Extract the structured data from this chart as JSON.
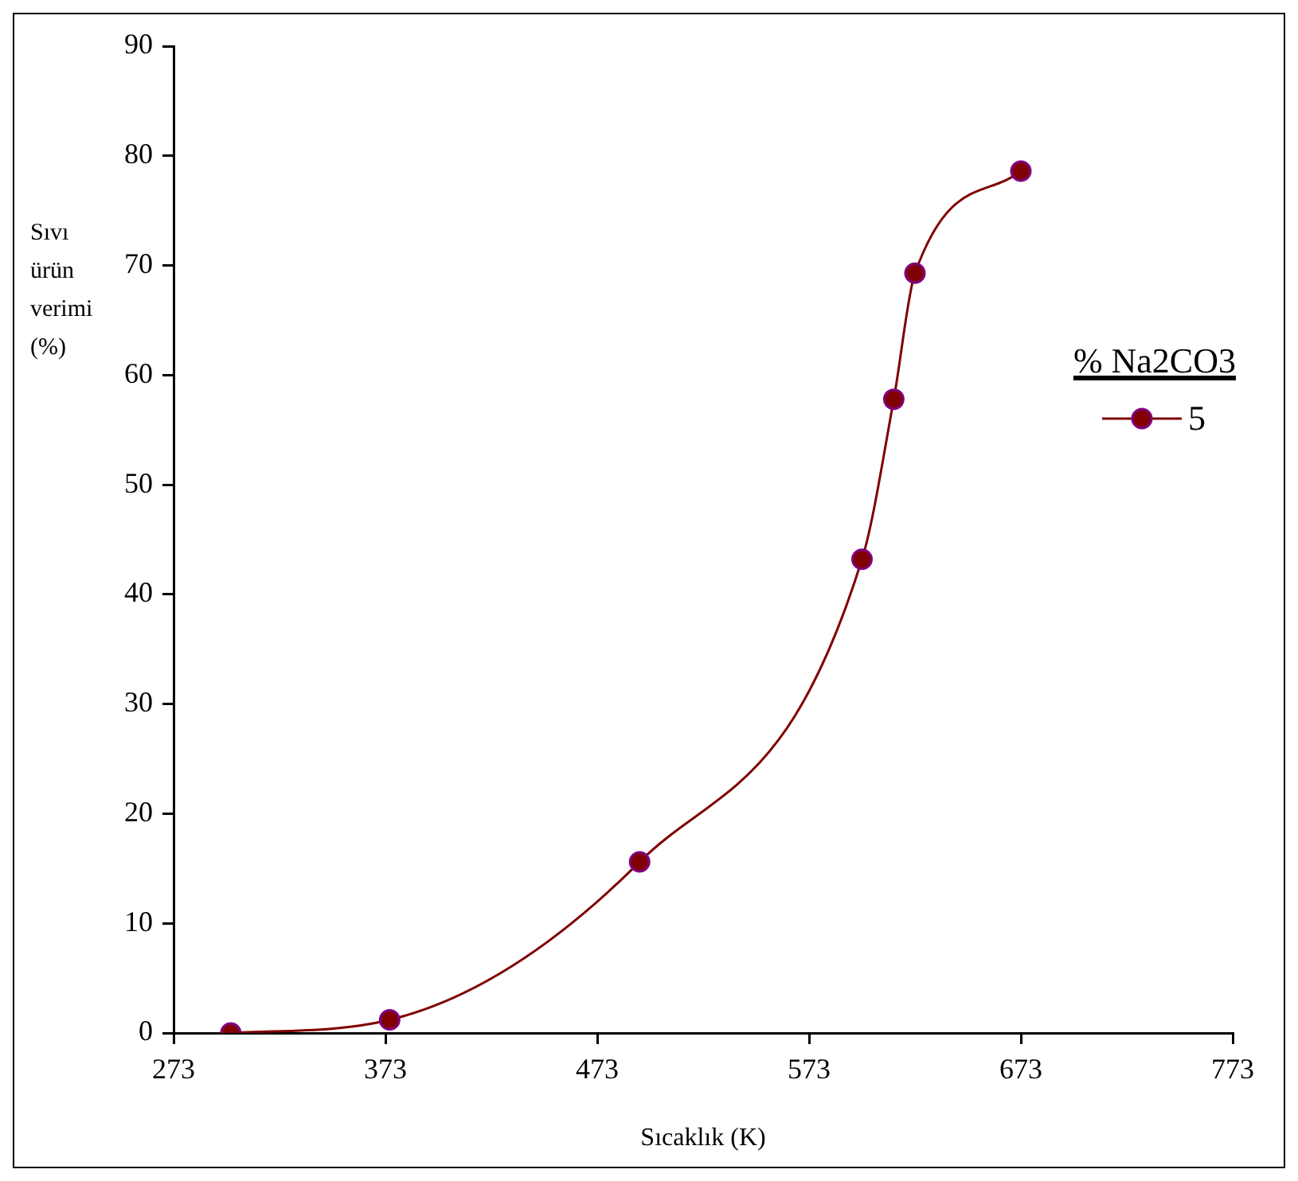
{
  "chart_data": {
    "type": "line",
    "xlabel": "Sıcaklık (K)",
    "ylabel": "Sıvı ürün verimi (%)",
    "legend_title": "% Na2CO3",
    "xlim": [
      273,
      773
    ],
    "xticks": [
      273,
      373,
      473,
      573,
      673,
      773
    ],
    "ylim": [
      0,
      90
    ],
    "yticks": [
      0,
      10,
      20,
      30,
      40,
      50,
      60,
      70,
      80,
      90
    ],
    "grid": false,
    "legend": "right",
    "marker": "circle",
    "line_style": "solid",
    "series": [
      {
        "name": "5",
        "color": "#800000",
        "x": [
          300,
          375,
          493,
          598,
          613,
          623,
          673
        ],
        "values": [
          0,
          1.2,
          15.6,
          43.2,
          57.8,
          69.3,
          78.6
        ]
      }
    ]
  }
}
